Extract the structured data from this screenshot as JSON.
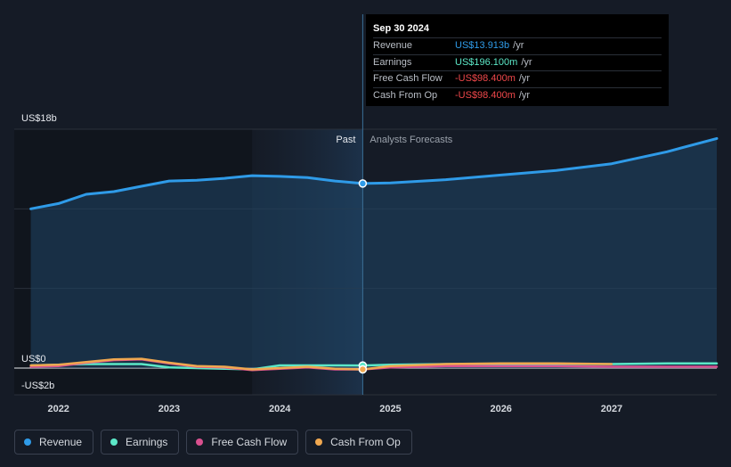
{
  "tooltip": {
    "date": "Sep 30 2024",
    "rows": [
      {
        "label": "Revenue",
        "value": "US$13.913b",
        "unit": "/yr",
        "color": "#2f9be8"
      },
      {
        "label": "Earnings",
        "value": "US$196.100m",
        "unit": "/yr",
        "color": "#5ce8c8"
      },
      {
        "label": "Free Cash Flow",
        "value": "-US$98.400m",
        "unit": "/yr",
        "color": "#f0484b"
      },
      {
        "label": "Cash From Op",
        "value": "-US$98.400m",
        "unit": "/yr",
        "color": "#f0484b"
      }
    ]
  },
  "labels": {
    "past": "Past",
    "forecast": "Analysts Forecasts"
  },
  "legend": [
    {
      "label": "Revenue",
      "color": "#2f9be8"
    },
    {
      "label": "Earnings",
      "color": "#5ce8c8"
    },
    {
      "label": "Free Cash Flow",
      "color": "#d9508f"
    },
    {
      "label": "Cash From Op",
      "color": "#f0a850"
    }
  ],
  "chart_data": {
    "type": "line",
    "y_tick_labels": [
      {
        "value": 18,
        "label": "US$18b"
      },
      {
        "value": 0,
        "label": "US$0"
      },
      {
        "value": -2,
        "label": "-US$2b"
      }
    ],
    "ylim": [
      -2,
      18
    ],
    "xlim": [
      2021.6,
      2027.95
    ],
    "x_ticks": [
      2022,
      2023,
      2024,
      2025,
      2026,
      2027
    ],
    "divider_x": 2024.75,
    "past_start_x": 2023.75,
    "grid": true,
    "series": [
      {
        "name": "Revenue",
        "color": "#2f9be8",
        "fill": true,
        "points": [
          [
            2021.75,
            12.0
          ],
          [
            2022.0,
            12.4
          ],
          [
            2022.25,
            13.1
          ],
          [
            2022.5,
            13.3
          ],
          [
            2022.75,
            13.7
          ],
          [
            2023.0,
            14.1
          ],
          [
            2023.25,
            14.15
          ],
          [
            2023.5,
            14.3
          ],
          [
            2023.75,
            14.5
          ],
          [
            2024.0,
            14.45
          ],
          [
            2024.25,
            14.35
          ],
          [
            2024.5,
            14.1
          ],
          [
            2024.75,
            13.91
          ],
          [
            2025.0,
            13.95
          ],
          [
            2025.5,
            14.2
          ],
          [
            2026.0,
            14.55
          ],
          [
            2026.5,
            14.9
          ],
          [
            2027.0,
            15.4
          ],
          [
            2027.5,
            16.3
          ],
          [
            2027.95,
            17.3
          ]
        ]
      },
      {
        "name": "Earnings",
        "color": "#5ce8c8",
        "points": [
          [
            2021.75,
            0.2
          ],
          [
            2022.0,
            0.25
          ],
          [
            2022.25,
            0.3
          ],
          [
            2022.5,
            0.3
          ],
          [
            2022.75,
            0.3
          ],
          [
            2023.0,
            0.05
          ],
          [
            2023.25,
            0.0
          ],
          [
            2023.5,
            -0.05
          ],
          [
            2023.75,
            -0.1
          ],
          [
            2024.0,
            0.2
          ],
          [
            2024.25,
            0.2
          ],
          [
            2024.5,
            0.2
          ],
          [
            2024.75,
            0.196
          ],
          [
            2025.0,
            0.25
          ],
          [
            2025.5,
            0.3
          ],
          [
            2026.0,
            0.3
          ],
          [
            2026.5,
            0.3
          ],
          [
            2027.0,
            0.3
          ],
          [
            2027.5,
            0.35
          ],
          [
            2027.95,
            0.35
          ]
        ]
      },
      {
        "name": "Free Cash Flow",
        "color": "#d9508f",
        "points": [
          [
            2021.75,
            0.1
          ],
          [
            2022.0,
            0.15
          ],
          [
            2022.25,
            0.4
          ],
          [
            2022.5,
            0.6
          ],
          [
            2022.75,
            0.65
          ],
          [
            2023.0,
            0.35
          ],
          [
            2023.25,
            0.1
          ],
          [
            2023.5,
            0.05
          ],
          [
            2023.75,
            -0.15
          ],
          [
            2024.0,
            -0.05
          ],
          [
            2024.25,
            0.05
          ],
          [
            2024.5,
            -0.1
          ],
          [
            2024.75,
            -0.098
          ],
          [
            2025.0,
            0.05
          ],
          [
            2025.5,
            0.15
          ],
          [
            2026.0,
            0.15
          ],
          [
            2026.5,
            0.15
          ],
          [
            2027.0,
            0.1
          ],
          [
            2027.5,
            0.1
          ],
          [
            2027.95,
            0.1
          ]
        ]
      },
      {
        "name": "Cash From Op",
        "color": "#f0a850",
        "points": [
          [
            2021.75,
            0.2
          ],
          [
            2022.0,
            0.25
          ],
          [
            2022.25,
            0.45
          ],
          [
            2022.5,
            0.65
          ],
          [
            2022.75,
            0.7
          ],
          [
            2023.0,
            0.4
          ],
          [
            2023.25,
            0.15
          ],
          [
            2023.5,
            0.1
          ],
          [
            2023.75,
            -0.1
          ],
          [
            2024.0,
            0.0
          ],
          [
            2024.25,
            0.1
          ],
          [
            2024.5,
            -0.05
          ],
          [
            2024.75,
            -0.098
          ],
          [
            2025.0,
            0.15
          ],
          [
            2025.5,
            0.3
          ],
          [
            2026.0,
            0.35
          ],
          [
            2026.5,
            0.35
          ],
          [
            2027.0,
            0.3
          ]
        ]
      }
    ]
  }
}
